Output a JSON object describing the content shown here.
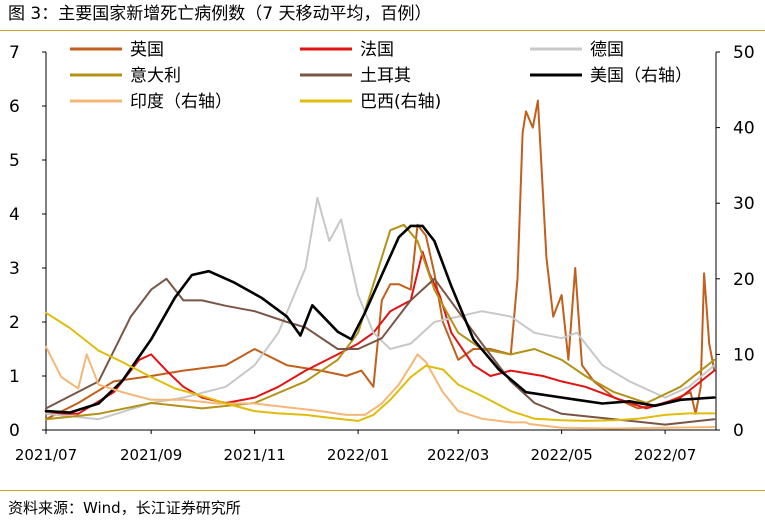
{
  "page": {
    "title": "图 3：主要国家新增死亡病例数（7 天移动平均，百例）",
    "source": "资料来源：Wind，长江证券研究所"
  },
  "chart_data": {
    "type": "line",
    "title": "图 3：主要国家新增死亡病例数（7 天移动平均，百例）",
    "xlabel": "",
    "ylabel": "",
    "y2label": "",
    "x_range": [
      "2021-07-01",
      "2022-07-31"
    ],
    "x_ticks": [
      "2021/07",
      "2021/09",
      "2021/11",
      "2022/01",
      "2022/03",
      "2022/05",
      "2022/07"
    ],
    "y_left": {
      "range": [
        0,
        7
      ],
      "ticks": [
        0,
        1,
        2,
        3,
        4,
        5,
        6,
        7
      ]
    },
    "y_right": {
      "range": [
        0,
        50
      ],
      "ticks": [
        0,
        10,
        20,
        30,
        40,
        50
      ]
    },
    "grid": false,
    "legend_position": "top",
    "series": [
      {
        "name": "英国",
        "axis": "left",
        "color": "#c0601c",
        "width": 2,
        "points": [
          [
            "2021-07-01",
            0.2
          ],
          [
            "2021-07-20",
            0.5
          ],
          [
            "2021-08-10",
            0.9
          ],
          [
            "2021-09-01",
            1.0
          ],
          [
            "2021-09-20",
            1.1
          ],
          [
            "2021-10-15",
            1.2
          ],
          [
            "2021-11-01",
            1.5
          ],
          [
            "2021-11-20",
            1.2
          ],
          [
            "2021-12-10",
            1.1
          ],
          [
            "2021-12-25",
            1.0
          ],
          [
            "2022-01-03",
            1.1
          ],
          [
            "2022-01-10",
            0.8
          ],
          [
            "2022-01-15",
            2.4
          ],
          [
            "2022-01-20",
            2.7
          ],
          [
            "2022-01-25",
            2.7
          ],
          [
            "2022-02-01",
            2.6
          ],
          [
            "2022-02-05",
            3.8
          ],
          [
            "2022-02-10",
            3.6
          ],
          [
            "2022-02-15",
            2.9
          ],
          [
            "2022-02-20",
            2.0
          ],
          [
            "2022-03-01",
            1.3
          ],
          [
            "2022-03-10",
            1.5
          ],
          [
            "2022-03-20",
            1.5
          ],
          [
            "2022-04-01",
            1.4
          ],
          [
            "2022-04-05",
            2.8
          ],
          [
            "2022-04-08",
            5.5
          ],
          [
            "2022-04-10",
            5.9
          ],
          [
            "2022-04-14",
            5.6
          ],
          [
            "2022-04-17",
            6.1
          ],
          [
            "2022-04-22",
            3.2
          ],
          [
            "2022-04-26",
            2.1
          ],
          [
            "2022-05-01",
            2.5
          ],
          [
            "2022-05-05",
            1.3
          ],
          [
            "2022-05-09",
            3.0
          ],
          [
            "2022-05-13",
            1.2
          ],
          [
            "2022-05-20",
            0.9
          ],
          [
            "2022-06-01",
            0.6
          ],
          [
            "2022-06-15",
            0.4
          ],
          [
            "2022-07-01",
            0.5
          ],
          [
            "2022-07-16",
            0.7
          ],
          [
            "2022-07-19",
            0.3
          ],
          [
            "2022-07-22",
            0.8
          ],
          [
            "2022-07-24",
            2.9
          ],
          [
            "2022-07-27",
            1.6
          ],
          [
            "2022-07-30",
            1.1
          ]
        ]
      },
      {
        "name": "法国",
        "axis": "left",
        "color": "#e01414",
        "width": 2,
        "points": [
          [
            "2021-07-01",
            0.3
          ],
          [
            "2021-07-20",
            0.3
          ],
          [
            "2021-08-10",
            0.7
          ],
          [
            "2021-08-25",
            1.3
          ],
          [
            "2021-09-01",
            1.4
          ],
          [
            "2021-09-10",
            1.1
          ],
          [
            "2021-09-20",
            0.8
          ],
          [
            "2021-10-01",
            0.6
          ],
          [
            "2021-10-15",
            0.5
          ],
          [
            "2021-11-01",
            0.6
          ],
          [
            "2021-11-15",
            0.8
          ],
          [
            "2021-12-01",
            1.1
          ],
          [
            "2021-12-20",
            1.4
          ],
          [
            "2022-01-01",
            1.6
          ],
          [
            "2022-01-10",
            1.8
          ],
          [
            "2022-01-20",
            2.2
          ],
          [
            "2022-02-01",
            2.4
          ],
          [
            "2022-02-08",
            3.3
          ],
          [
            "2022-02-12",
            2.9
          ],
          [
            "2022-02-18",
            2.5
          ],
          [
            "2022-02-25",
            1.8
          ],
          [
            "2022-03-10",
            1.2
          ],
          [
            "2022-03-20",
            1.0
          ],
          [
            "2022-04-01",
            1.1
          ],
          [
            "2022-04-20",
            1.0
          ],
          [
            "2022-05-01",
            0.9
          ],
          [
            "2022-05-15",
            0.8
          ],
          [
            "2022-06-01",
            0.6
          ],
          [
            "2022-06-20",
            0.4
          ],
          [
            "2022-07-10",
            0.6
          ],
          [
            "2022-07-30",
            1.1
          ]
        ]
      },
      {
        "name": "德国",
        "axis": "left",
        "color": "#c8c8c8",
        "width": 2,
        "points": [
          [
            "2021-07-01",
            0.3
          ],
          [
            "2021-08-01",
            0.2
          ],
          [
            "2021-09-01",
            0.5
          ],
          [
            "2021-09-20",
            0.6
          ],
          [
            "2021-10-15",
            0.8
          ],
          [
            "2021-11-01",
            1.2
          ],
          [
            "2021-11-15",
            1.8
          ],
          [
            "2021-12-01",
            3.0
          ],
          [
            "2021-12-08",
            4.3
          ],
          [
            "2021-12-15",
            3.5
          ],
          [
            "2021-12-22",
            3.9
          ],
          [
            "2022-01-01",
            2.5
          ],
          [
            "2022-01-10",
            1.8
          ],
          [
            "2022-01-20",
            1.5
          ],
          [
            "2022-02-01",
            1.6
          ],
          [
            "2022-02-15",
            2.0
          ],
          [
            "2022-03-01",
            2.1
          ],
          [
            "2022-03-15",
            2.2
          ],
          [
            "2022-04-01",
            2.1
          ],
          [
            "2022-04-15",
            1.8
          ],
          [
            "2022-05-01",
            1.7
          ],
          [
            "2022-05-10",
            1.8
          ],
          [
            "2022-05-25",
            1.2
          ],
          [
            "2022-06-10",
            0.9
          ],
          [
            "2022-07-01",
            0.6
          ],
          [
            "2022-07-15",
            0.8
          ],
          [
            "2022-07-30",
            1.2
          ]
        ]
      },
      {
        "name": "意大利",
        "axis": "left",
        "color": "#b39218",
        "width": 2,
        "points": [
          [
            "2021-07-01",
            0.2
          ],
          [
            "2021-08-01",
            0.3
          ],
          [
            "2021-09-01",
            0.5
          ],
          [
            "2021-10-01",
            0.4
          ],
          [
            "2021-11-01",
            0.5
          ],
          [
            "2021-12-01",
            0.9
          ],
          [
            "2021-12-20",
            1.3
          ],
          [
            "2022-01-01",
            1.8
          ],
          [
            "2022-01-10",
            2.7
          ],
          [
            "2022-01-20",
            3.7
          ],
          [
            "2022-01-28",
            3.8
          ],
          [
            "2022-02-05",
            3.5
          ],
          [
            "2022-02-15",
            2.6
          ],
          [
            "2022-03-01",
            1.8
          ],
          [
            "2022-03-15",
            1.5
          ],
          [
            "2022-04-01",
            1.4
          ],
          [
            "2022-04-15",
            1.5
          ],
          [
            "2022-05-01",
            1.3
          ],
          [
            "2022-05-15",
            1.0
          ],
          [
            "2022-06-01",
            0.7
          ],
          [
            "2022-06-20",
            0.5
          ],
          [
            "2022-07-10",
            0.8
          ],
          [
            "2022-07-30",
            1.3
          ]
        ]
      },
      {
        "name": "土耳其",
        "axis": "left",
        "color": "#7a5546",
        "width": 2,
        "points": [
          [
            "2021-07-01",
            0.4
          ],
          [
            "2021-08-01",
            0.9
          ],
          [
            "2021-08-20",
            2.1
          ],
          [
            "2021-09-01",
            2.6
          ],
          [
            "2021-09-10",
            2.8
          ],
          [
            "2021-09-20",
            2.4
          ],
          [
            "2021-10-01",
            2.4
          ],
          [
            "2021-10-15",
            2.3
          ],
          [
            "2021-11-01",
            2.2
          ],
          [
            "2021-11-20",
            2.0
          ],
          [
            "2021-12-01",
            1.9
          ],
          [
            "2021-12-20",
            1.5
          ],
          [
            "2022-01-01",
            1.5
          ],
          [
            "2022-01-15",
            1.7
          ],
          [
            "2022-02-01",
            2.4
          ],
          [
            "2022-02-15",
            2.8
          ],
          [
            "2022-03-01",
            2.2
          ],
          [
            "2022-03-15",
            1.6
          ],
          [
            "2022-04-01",
            0.9
          ],
          [
            "2022-04-15",
            0.5
          ],
          [
            "2022-05-01",
            0.3
          ],
          [
            "2022-06-01",
            0.2
          ],
          [
            "2022-07-01",
            0.1
          ],
          [
            "2022-07-30",
            0.2
          ]
        ]
      },
      {
        "name": "美国（右轴）",
        "axis": "right",
        "color": "#000000",
        "width": 2.6,
        "points": [
          [
            "2021-07-01",
            2.5
          ],
          [
            "2021-07-15",
            2.3
          ],
          [
            "2021-08-01",
            3.5
          ],
          [
            "2021-08-15",
            6.5
          ],
          [
            "2021-09-01",
            12.0
          ],
          [
            "2021-09-15",
            17.5
          ],
          [
            "2021-09-25",
            20.5
          ],
          [
            "2021-10-05",
            21.0
          ],
          [
            "2021-10-20",
            19.5
          ],
          [
            "2021-11-05",
            17.5
          ],
          [
            "2021-11-20",
            15.0
          ],
          [
            "2021-11-28",
            12.5
          ],
          [
            "2021-12-05",
            16.5
          ],
          [
            "2021-12-20",
            13.0
          ],
          [
            "2021-12-28",
            12.0
          ],
          [
            "2022-01-05",
            15.5
          ],
          [
            "2022-01-15",
            20.5
          ],
          [
            "2022-01-25",
            25.5
          ],
          [
            "2022-02-01",
            27.0
          ],
          [
            "2022-02-08",
            27.0
          ],
          [
            "2022-02-15",
            25.0
          ],
          [
            "2022-02-25",
            19.0
          ],
          [
            "2022-03-10",
            12.0
          ],
          [
            "2022-03-25",
            8.0
          ],
          [
            "2022-04-10",
            5.0
          ],
          [
            "2022-04-25",
            4.5
          ],
          [
            "2022-05-10",
            4.0
          ],
          [
            "2022-05-25",
            3.5
          ],
          [
            "2022-06-10",
            3.8
          ],
          [
            "2022-06-25",
            3.2
          ],
          [
            "2022-07-10",
            4.0
          ],
          [
            "2022-07-30",
            4.3
          ]
        ]
      },
      {
        "name": "印度（右轴）",
        "axis": "right",
        "color": "#f5b777",
        "width": 2,
        "points": [
          [
            "2021-07-01",
            11.0
          ],
          [
            "2021-07-10",
            7.0
          ],
          [
            "2021-07-20",
            5.5
          ],
          [
            "2021-07-25",
            10.0
          ],
          [
            "2021-08-01",
            6.0
          ],
          [
            "2021-08-15",
            5.0
          ],
          [
            "2021-09-01",
            4.0
          ],
          [
            "2021-09-20",
            4.0
          ],
          [
            "2021-10-10",
            3.5
          ],
          [
            "2021-11-01",
            3.5
          ],
          [
            "2021-11-20",
            3.0
          ],
          [
            "2021-12-10",
            2.5
          ],
          [
            "2021-12-25",
            2.0
          ],
          [
            "2022-01-05",
            2.0
          ],
          [
            "2022-01-15",
            3.5
          ],
          [
            "2022-01-25",
            6.0
          ],
          [
            "2022-02-01",
            8.5
          ],
          [
            "2022-02-05",
            10.0
          ],
          [
            "2022-02-10",
            9.0
          ],
          [
            "2022-02-20",
            5.0
          ],
          [
            "2022-03-01",
            2.5
          ],
          [
            "2022-03-15",
            1.5
          ],
          [
            "2022-04-01",
            1.0
          ],
          [
            "2022-04-10",
            1.0
          ],
          [
            "2022-04-12",
            0.8
          ],
          [
            "2022-05-01",
            0.3
          ],
          [
            "2022-06-01",
            0.2
          ],
          [
            "2022-07-01",
            0.3
          ],
          [
            "2022-07-30",
            0.4
          ]
        ]
      },
      {
        "name": "巴西(右轴)",
        "axis": "right",
        "color": "#e0bc0c",
        "width": 2,
        "points": [
          [
            "2021-07-01",
            15.5
          ],
          [
            "2021-07-15",
            13.5
          ],
          [
            "2021-08-01",
            10.5
          ],
          [
            "2021-08-15",
            9.0
          ],
          [
            "2021-09-01",
            7.0
          ],
          [
            "2021-09-15",
            5.5
          ],
          [
            "2021-10-01",
            4.5
          ],
          [
            "2021-10-15",
            3.5
          ],
          [
            "2021-11-01",
            2.5
          ],
          [
            "2021-11-15",
            2.2
          ],
          [
            "2021-12-01",
            2.0
          ],
          [
            "2021-12-20",
            1.5
          ],
          [
            "2022-01-01",
            1.2
          ],
          [
            "2022-01-10",
            2.0
          ],
          [
            "2022-01-20",
            4.0
          ],
          [
            "2022-02-01",
            7.0
          ],
          [
            "2022-02-10",
            8.5
          ],
          [
            "2022-02-20",
            8.0
          ],
          [
            "2022-03-01",
            6.0
          ],
          [
            "2022-03-15",
            4.5
          ],
          [
            "2022-04-01",
            2.5
          ],
          [
            "2022-04-15",
            1.5
          ],
          [
            "2022-05-01",
            1.3
          ],
          [
            "2022-05-15",
            1.2
          ],
          [
            "2022-06-01",
            1.3
          ],
          [
            "2022-06-15",
            1.5
          ],
          [
            "2022-07-01",
            2.0
          ],
          [
            "2022-07-15",
            2.2
          ],
          [
            "2022-07-30",
            2.2
          ]
        ]
      }
    ]
  }
}
